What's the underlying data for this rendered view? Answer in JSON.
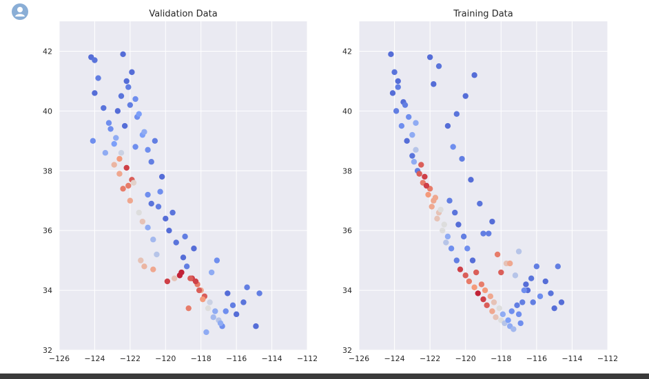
{
  "chart_data": [
    {
      "type": "scatter",
      "title": "Validation Data",
      "xlabel": "",
      "ylabel": "",
      "xlim": [
        -126,
        -112
      ],
      "ylim": [
        32,
        43
      ],
      "xticks": [
        -126,
        -124,
        -122,
        -120,
        -118,
        -116,
        -114,
        -112
      ],
      "yticks": [
        32,
        34,
        36,
        38,
        40,
        42
      ],
      "xtick_labels": [
        "−126",
        "−124",
        "−122",
        "−120",
        "−118",
        "−116",
        "−114",
        "−112"
      ],
      "ytick_labels": [
        "32",
        "34",
        "36",
        "38",
        "40",
        "42"
      ],
      "colormap": "coolwarm",
      "grid": true,
      "series": [
        {
          "name": "points",
          "x": [
            -124.2,
            -123.8,
            -124.0,
            -123.5,
            -123.2,
            -122.8,
            -122.5,
            -122.2,
            -121.9,
            -122.4,
            -122.0,
            -121.5,
            -121.0,
            -120.7,
            -121.3,
            -120.5,
            -121.2,
            -122.9,
            -123.1,
            -122.6,
            -121.8,
            -121.0,
            -120.4,
            -120.0,
            -119.8,
            -119.4,
            -119.0,
            -118.8,
            -118.5,
            -118.2,
            -118.0,
            -117.8,
            -117.5,
            -117.2,
            -117.0,
            -116.8,
            -116.5,
            -116.2,
            -116.0,
            -115.6,
            -115.4,
            -117.4,
            -117.1,
            -118.4,
            -118.9,
            -119.6,
            -120.2,
            -120.8,
            -121.7,
            -122.3,
            -122.7,
            -122.5,
            -122.2,
            -121.9,
            -122.0,
            -121.6,
            -121.3,
            -121.0,
            -120.6,
            -120.3,
            -120.8,
            -119.2,
            -119.9,
            -120.7,
            -121.4,
            -122.1,
            -122.6,
            -122.9,
            -123.4,
            -124.1,
            -124.0,
            -122.4,
            -122.1,
            -121.7,
            -121.5,
            -121.2,
            -118.3,
            -118.1,
            -117.9,
            -117.6,
            -117.3,
            -116.9,
            -116.6,
            -118.6,
            -119.1,
            -119.5,
            -114.7,
            -114.9,
            -117.7,
            -118.7
          ],
          "y": [
            41.8,
            41.1,
            40.6,
            40.1,
            39.6,
            39.1,
            38.6,
            38.1,
            37.7,
            37.4,
            37.0,
            36.6,
            36.1,
            35.7,
            36.3,
            35.2,
            34.8,
            38.9,
            39.4,
            38.4,
            37.6,
            37.2,
            36.8,
            36.4,
            36.0,
            35.6,
            35.1,
            34.8,
            34.4,
            34.2,
            34.0,
            33.8,
            33.6,
            33.3,
            33.0,
            32.8,
            33.9,
            33.5,
            33.2,
            33.6,
            34.1,
            34.6,
            35.0,
            35.4,
            35.8,
            36.6,
            37.8,
            38.3,
            38.8,
            39.5,
            40.0,
            40.5,
            41.0,
            41.3,
            40.2,
            39.8,
            39.2,
            38.7,
            39.0,
            37.3,
            36.9,
            34.5,
            34.3,
            34.7,
            35.0,
            37.5,
            37.9,
            38.2,
            38.6,
            39.0,
            41.7,
            41.9,
            40.8,
            40.4,
            39.9,
            39.3,
            34.3,
            34.0,
            33.7,
            33.4,
            33.1,
            32.9,
            33.3,
            34.4,
            34.6,
            34.4,
            33.9,
            32.8,
            32.6,
            33.4
          ],
          "c": [
            0.1,
            0.15,
            0.1,
            0.12,
            0.2,
            0.3,
            0.45,
            0.9,
            0.85,
            0.8,
            0.7,
            0.5,
            0.3,
            0.35,
            0.6,
            0.4,
            0.65,
            0.25,
            0.2,
            0.75,
            0.55,
            0.2,
            0.15,
            0.1,
            0.1,
            0.12,
            0.1,
            0.15,
            0.9,
            0.8,
            0.7,
            0.85,
            0.45,
            0.3,
            0.4,
            0.2,
            0.1,
            0.15,
            0.1,
            0.12,
            0.15,
            0.3,
            0.2,
            0.1,
            0.15,
            0.12,
            0.1,
            0.15,
            0.2,
            0.1,
            0.1,
            0.12,
            0.1,
            0.1,
            0.15,
            0.2,
            0.25,
            0.2,
            0.15,
            0.2,
            0.12,
            0.95,
            0.9,
            0.7,
            0.6,
            0.8,
            0.7,
            0.65,
            0.3,
            0.2,
            0.12,
            0.1,
            0.15,
            0.2,
            0.25,
            0.3,
            0.9,
            0.85,
            0.75,
            0.5,
            0.35,
            0.3,
            0.2,
            0.85,
            0.95,
            0.6,
            0.15,
            0.1,
            0.3,
            0.8
          ]
        }
      ]
    },
    {
      "type": "scatter",
      "title": "Training Data",
      "xlabel": "",
      "ylabel": "",
      "xlim": [
        -126,
        -112
      ],
      "ylim": [
        32,
        43
      ],
      "xticks": [
        -126,
        -124,
        -122,
        -120,
        -118,
        -116,
        -114,
        -112
      ],
      "yticks": [
        32,
        34,
        36,
        38,
        40,
        42
      ],
      "xtick_labels": [
        "−126",
        "−124",
        "−122",
        "−120",
        "−118",
        "−116",
        "−114",
        "−112"
      ],
      "ytick_labels": [
        "32",
        "34",
        "36",
        "38",
        "40",
        "42"
      ],
      "colormap": "coolwarm",
      "grid": true,
      "series": [
        {
          "name": "points",
          "x": [
            -124.2,
            -124.0,
            -123.8,
            -123.5,
            -123.2,
            -123.0,
            -122.8,
            -122.5,
            -122.3,
            -122.0,
            -121.8,
            -121.5,
            -121.2,
            -121.0,
            -120.8,
            -120.5,
            -120.3,
            -120.0,
            -119.8,
            -119.5,
            -119.3,
            -119.0,
            -118.8,
            -118.5,
            -118.3,
            -118.0,
            -117.8,
            -117.5,
            -117.3,
            -117.0,
            -116.8,
            -116.5,
            -116.3,
            -116.0,
            -115.8,
            -115.5,
            -115.2,
            -115.0,
            -114.8,
            -114.6,
            -124.1,
            -123.9,
            -123.6,
            -123.3,
            -123.0,
            -122.7,
            -122.4,
            -122.1,
            -121.9,
            -121.6,
            -121.3,
            -121.1,
            -120.9,
            -120.6,
            -120.4,
            -120.1,
            -119.9,
            -119.6,
            -119.4,
            -119.1,
            -118.9,
            -118.6,
            -118.4,
            -118.1,
            -117.9,
            -117.6,
            -117.4,
            -117.1,
            -116.9,
            -116.6,
            -122.9,
            -122.6,
            -122.2,
            -121.7,
            -121.4,
            -120.7,
            -120.2,
            -119.7,
            -119.2,
            -118.7,
            -118.2,
            -117.7,
            -117.2,
            -116.7,
            -116.2,
            -121.0,
            -120.5,
            -120.0,
            -119.5,
            -122.0,
            -121.5,
            -123.8,
            -123.4,
            -122.8,
            -121.8,
            -118.0,
            -117.5,
            -117.0,
            -119.0,
            -118.5
          ],
          "y": [
            41.9,
            41.3,
            40.8,
            40.3,
            39.8,
            39.2,
            38.7,
            38.2,
            37.8,
            37.4,
            37.0,
            36.6,
            36.2,
            35.8,
            35.4,
            35.0,
            34.7,
            34.5,
            34.3,
            34.1,
            33.9,
            33.7,
            33.5,
            33.3,
            33.1,
            33.0,
            32.9,
            32.8,
            32.7,
            33.2,
            33.6,
            34.0,
            34.4,
            34.8,
            33.8,
            34.3,
            33.9,
            33.4,
            34.8,
            33.6,
            40.6,
            40.0,
            39.5,
            39.0,
            38.5,
            38.0,
            37.6,
            37.2,
            36.8,
            36.4,
            36.0,
            35.6,
            37.0,
            36.6,
            36.2,
            35.8,
            35.4,
            35.0,
            34.6,
            34.2,
            34.0,
            33.8,
            33.6,
            33.4,
            33.2,
            33.0,
            33.3,
            33.5,
            32.9,
            34.2,
            38.3,
            37.9,
            37.5,
            37.1,
            36.7,
            38.8,
            38.4,
            37.7,
            36.9,
            35.9,
            35.2,
            34.9,
            34.5,
            34.0,
            33.6,
            39.5,
            39.9,
            40.5,
            41.2,
            41.8,
            41.5,
            41.0,
            40.2,
            39.6,
            40.9,
            34.6,
            34.9,
            35.3,
            35.9,
            36.3
          ],
          "c": [
            0.1,
            0.12,
            0.15,
            0.1,
            0.2,
            0.3,
            0.4,
            0.85,
            0.9,
            0.8,
            0.7,
            0.6,
            0.5,
            0.3,
            0.2,
            0.15,
            0.9,
            0.85,
            0.8,
            0.75,
            0.95,
            0.9,
            0.85,
            0.7,
            0.6,
            0.5,
            0.4,
            0.3,
            0.35,
            0.2,
            0.15,
            0.1,
            0.12,
            0.15,
            0.2,
            0.1,
            0.12,
            0.1,
            0.15,
            0.1,
            0.1,
            0.15,
            0.2,
            0.1,
            0.12,
            0.15,
            0.8,
            0.75,
            0.7,
            0.6,
            0.5,
            0.4,
            0.15,
            0.12,
            0.1,
            0.15,
            0.2,
            0.1,
            0.85,
            0.8,
            0.75,
            0.7,
            0.6,
            0.5,
            0.3,
            0.25,
            0.2,
            0.15,
            0.2,
            0.1,
            0.3,
            0.85,
            0.9,
            0.7,
            0.5,
            0.2,
            0.15,
            0.1,
            0.12,
            0.15,
            0.8,
            0.6,
            0.4,
            0.2,
            0.15,
            0.1,
            0.12,
            0.1,
            0.1,
            0.1,
            0.12,
            0.1,
            0.15,
            0.3,
            0.1,
            0.85,
            0.7,
            0.4,
            0.15,
            0.1
          ]
        }
      ]
    }
  ]
}
